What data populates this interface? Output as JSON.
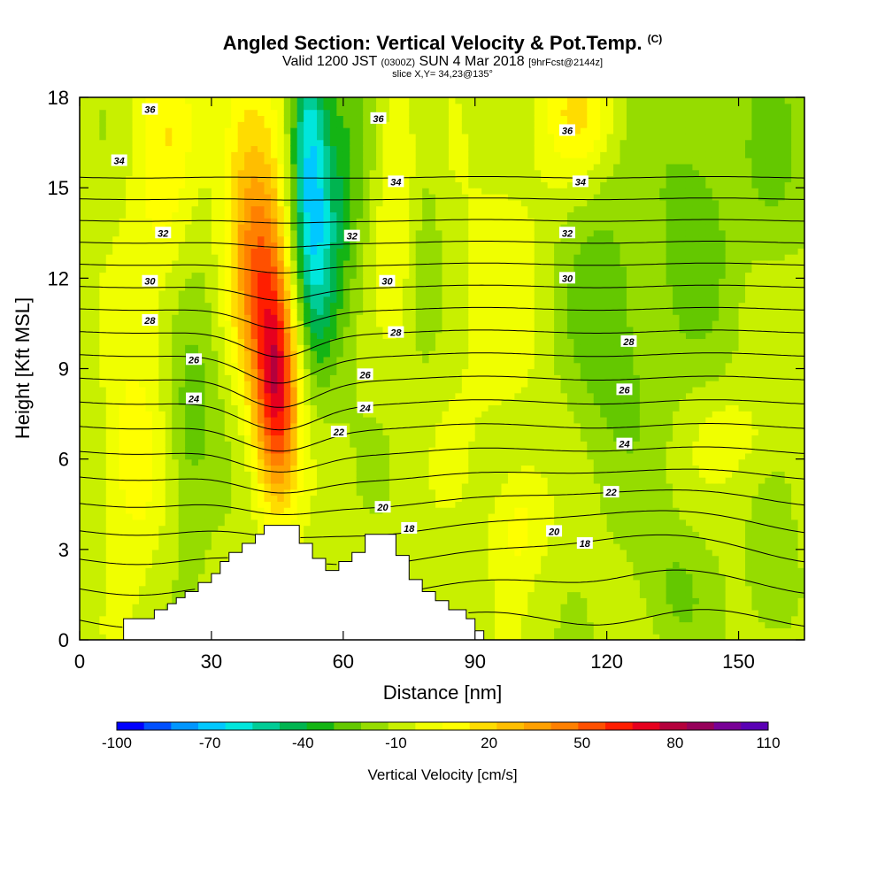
{
  "header": {
    "title": "Angled Section: Vertical Velocity & Pot.Temp.",
    "title_mark": "(C)",
    "subtitle_a": "Valid 1200 JST",
    "subtitle_b": "(0300Z)",
    "subtitle_c": "SUN 4 Mar 2018",
    "subtitle_d": "[9hrFcst@2144z]",
    "slice": "slice X,Y= 34,23@135°"
  },
  "chart_data": {
    "type": "heatmap",
    "xlabel": "Distance [nm]",
    "ylabel": "Height [Kft MSL]",
    "xlim": [
      0,
      165
    ],
    "ylim": [
      0,
      18
    ],
    "x_ticks": [
      0,
      30,
      60,
      90,
      120,
      150
    ],
    "y_ticks": [
      0,
      3,
      6,
      9,
      12,
      15,
      18
    ],
    "colorbar": {
      "title": "Vertical Velocity [cm/s]",
      "min": -100,
      "max": 110,
      "step": 10,
      "tick_labels": [
        -100,
        -70,
        -40,
        -10,
        20,
        50,
        80,
        110
      ],
      "colors": [
        "#0000ff",
        "#0050ff",
        "#0096ff",
        "#00c8ff",
        "#00e6dc",
        "#00cc96",
        "#00b450",
        "#14b414",
        "#64c800",
        "#96dc00",
        "#c8f000",
        "#f0ff00",
        "#ffff00",
        "#ffdc00",
        "#ffbe00",
        "#ffa000",
        "#ff8000",
        "#ff5000",
        "#ff1e00",
        "#e6001e",
        "#b4003c",
        "#96005a",
        "#780096",
        "#5a00b4"
      ]
    },
    "terrain": {
      "x": [
        10,
        17,
        20,
        22,
        24,
        27,
        30,
        32,
        34,
        37,
        40,
        42,
        44,
        47,
        50,
        53,
        56,
        59,
        62,
        65,
        68,
        72,
        75,
        78,
        81,
        84,
        88,
        90
      ],
      "height": [
        0.7,
        1.0,
        1.2,
        1.4,
        1.6,
        1.9,
        2.2,
        2.6,
        2.9,
        3.2,
        3.5,
        3.8,
        3.8,
        3.8,
        3.2,
        2.7,
        2.3,
        2.6,
        2.9,
        3.5,
        3.5,
        2.8,
        2.0,
        1.6,
        1.3,
        1.0,
        0.7,
        0.3
      ]
    },
    "vv_features": [
      {
        "x": 45,
        "y": 8.0,
        "sx": 3.5,
        "sy": 2.6,
        "value": 75
      },
      {
        "x": 42,
        "y": 11.5,
        "sx": 4.5,
        "sy": 3.0,
        "value": 45
      },
      {
        "x": 38,
        "y": 15.5,
        "sx": 5.0,
        "sy": 3.5,
        "value": 35
      },
      {
        "x": 20,
        "y": 16.0,
        "sx": 6.0,
        "sy": 4.0,
        "value": 25
      },
      {
        "x": 12,
        "y": 6.0,
        "sx": 5.0,
        "sy": 2.5,
        "value": 25
      },
      {
        "x": 52,
        "y": 16.5,
        "sx": 3.0,
        "sy": 3.0,
        "value": -55
      },
      {
        "x": 54,
        "y": 12.5,
        "sx": 3.5,
        "sy": 3.0,
        "value": -35
      },
      {
        "x": 60,
        "y": 15.0,
        "sx": 4.0,
        "sy": 3.5,
        "value": -25
      },
      {
        "x": 25,
        "y": 7.0,
        "sx": 4.0,
        "sy": 2.5,
        "value": -20
      },
      {
        "x": 28,
        "y": 14.0,
        "sx": 6.0,
        "sy": 5.0,
        "value": -10
      },
      {
        "x": 73,
        "y": 15.5,
        "sx": 4.0,
        "sy": 3.0,
        "value": 20
      },
      {
        "x": 78,
        "y": 15.0,
        "sx": 3.0,
        "sy": 4.0,
        "value": -15
      },
      {
        "x": 120,
        "y": 10.5,
        "sx": 8.0,
        "sy": 3.5,
        "value": -22
      },
      {
        "x": 140,
        "y": 14.5,
        "sx": 7.0,
        "sy": 4.0,
        "value": -18
      },
      {
        "x": 158,
        "y": 16.0,
        "sx": 5.0,
        "sy": 3.0,
        "value": -15
      },
      {
        "x": 114,
        "y": 17.5,
        "sx": 6.0,
        "sy": 1.5,
        "value": 25
      },
      {
        "x": 135,
        "y": 1.8,
        "sx": 6.0,
        "sy": 1.6,
        "value": -15
      },
      {
        "x": 158,
        "y": 1.8,
        "sx": 4.0,
        "sy": 1.6,
        "value": -15
      },
      {
        "x": 100,
        "y": 3.8,
        "sx": 4.0,
        "sy": 1.3,
        "value": 18
      },
      {
        "x": 150,
        "y": 6.8,
        "sx": 7.0,
        "sy": 1.0,
        "value": 12
      },
      {
        "x": 96,
        "y": 11.0,
        "sx": 10.0,
        "sy": 5.0,
        "value": 10
      }
    ],
    "pot_temp_contours": {
      "levels": [
        18,
        19,
        20,
        21,
        22,
        23,
        24,
        25,
        26,
        27,
        28,
        29,
        30,
        31,
        32,
        33,
        34,
        35,
        36
      ],
      "labeled": [
        {
          "value": "36",
          "x": 16,
          "y": 17.6
        },
        {
          "value": "34",
          "x": 9,
          "y": 15.9
        },
        {
          "value": "32",
          "x": 19,
          "y": 13.5
        },
        {
          "value": "30",
          "x": 16,
          "y": 11.9
        },
        {
          "value": "28",
          "x": 16,
          "y": 10.6
        },
        {
          "value": "26",
          "x": 26,
          "y": 9.3
        },
        {
          "value": "24",
          "x": 26,
          "y": 8.0
        },
        {
          "value": "36",
          "x": 68,
          "y": 17.3
        },
        {
          "value": "34",
          "x": 72,
          "y": 15.2
        },
        {
          "value": "32",
          "x": 62,
          "y": 13.4
        },
        {
          "value": "30",
          "x": 70,
          "y": 11.9
        },
        {
          "value": "28",
          "x": 72,
          "y": 10.2
        },
        {
          "value": "26",
          "x": 65,
          "y": 8.8
        },
        {
          "value": "24",
          "x": 65,
          "y": 7.7
        },
        {
          "value": "22",
          "x": 59,
          "y": 6.9
        },
        {
          "value": "20",
          "x": 69,
          "y": 4.4
        },
        {
          "value": "18",
          "x": 75,
          "y": 3.7
        },
        {
          "value": "36",
          "x": 111,
          "y": 16.9
        },
        {
          "value": "34",
          "x": 114,
          "y": 15.2
        },
        {
          "value": "32",
          "x": 111,
          "y": 13.5
        },
        {
          "value": "30",
          "x": 111,
          "y": 12.0
        },
        {
          "value": "28",
          "x": 125,
          "y": 9.9
        },
        {
          "value": "26",
          "x": 124,
          "y": 8.3
        },
        {
          "value": "24",
          "x": 124,
          "y": 6.5
        },
        {
          "value": "22",
          "x": 121,
          "y": 4.9
        },
        {
          "value": "20",
          "x": 108,
          "y": 3.6
        },
        {
          "value": "18",
          "x": 115,
          "y": 3.2
        }
      ]
    }
  }
}
